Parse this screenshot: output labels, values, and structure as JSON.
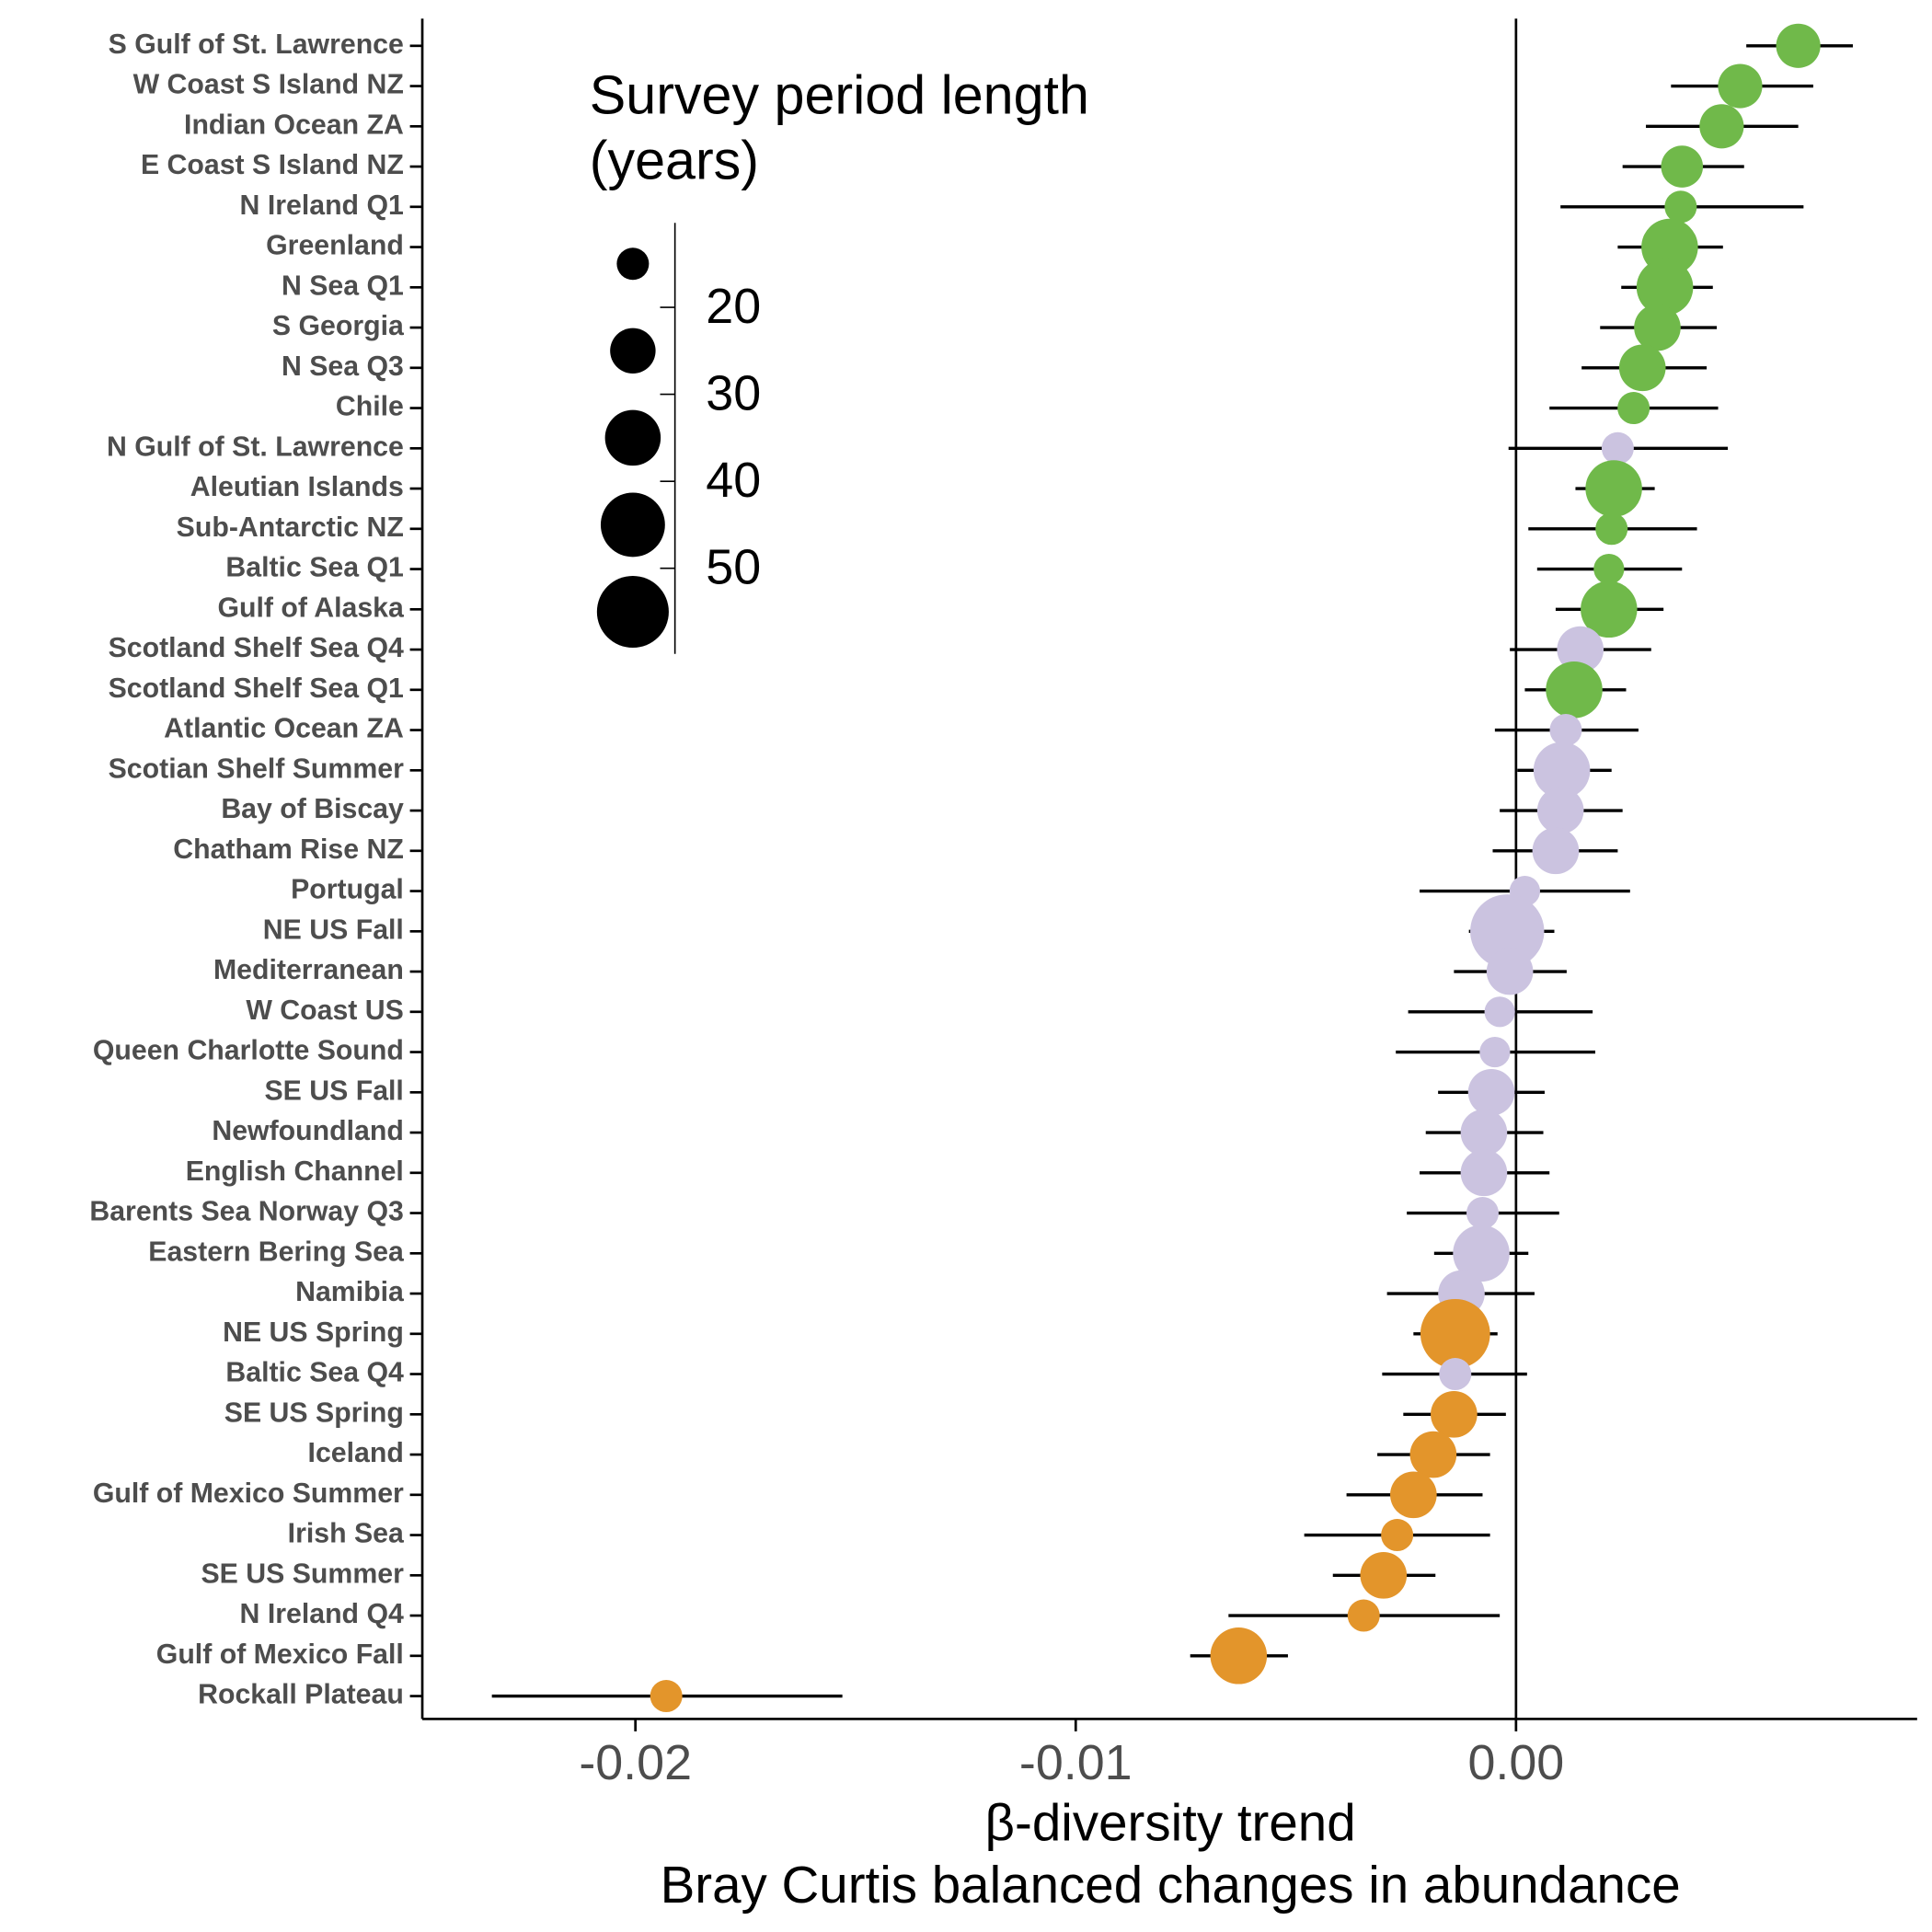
{
  "chart_data": {
    "type": "dotplot",
    "categories": [
      "S Gulf of St. Lawrence",
      "W Coast S Island NZ",
      "Indian Ocean ZA",
      "E Coast S Island NZ",
      "N Ireland Q1",
      "Greenland",
      "N Sea Q1",
      "S Georgia",
      "N Sea Q3",
      "Chile",
      "N Gulf of St. Lawrence",
      "Aleutian Islands",
      "Sub-Antarctic NZ",
      "Baltic Sea Q1",
      "Gulf of Alaska",
      "Scotland Shelf Sea Q4",
      "Scotland Shelf Sea Q1",
      "Atlantic Ocean ZA",
      "Scotian Shelf Summer",
      "Bay of Biscay",
      "Chatham Rise NZ",
      "Portugal",
      "NE US Fall",
      "Mediterranean",
      "W Coast US",
      "Queen Charlotte Sound",
      "SE US Fall",
      "Newfoundland",
      "English Channel",
      "Barents Sea Norway Q3",
      "Eastern Bering Sea",
      "Namibia",
      "NE US Spring",
      "Baltic Sea Q4",
      "SE US Spring",
      "Iceland",
      "Gulf of Mexico Summer",
      "Irish Sea",
      "SE US Summer",
      "N Ireland Q4",
      "Gulf of Mexico Fall",
      "Rockall Plateau"
    ],
    "values": [
      0.00641,
      0.00509,
      0.00467,
      0.00377,
      0.00374,
      0.00349,
      0.00338,
      0.00321,
      0.00287,
      0.00267,
      0.00231,
      0.00222,
      0.00217,
      0.00211,
      0.00211,
      0.00146,
      0.00132,
      0.00113,
      0.00104,
      0.00101,
      0.0009,
      0.0002,
      -0.0002,
      -0.00014,
      -0.00037,
      -0.00048,
      -0.00056,
      -0.00073,
      -0.00073,
      -0.00076,
      -0.00079,
      -0.00124,
      -0.00138,
      -0.00138,
      -0.00141,
      -0.00188,
      -0.00233,
      -0.0027,
      -0.00301,
      -0.00346,
      -0.0063,
      -0.0193
    ],
    "lower": [
      0.00523,
      0.00352,
      0.00295,
      0.00242,
      0.00101,
      0.00231,
      0.00239,
      0.00191,
      0.00149,
      0.00076,
      -0.00017,
      0.00135,
      0.00028,
      0.00048,
      0.0009,
      -0.00014,
      0.0002,
      -0.00048,
      3e-05,
      -0.00037,
      -0.00053,
      -0.00219,
      -0.00107,
      -0.00141,
      -0.00245,
      -0.00273,
      -0.00177,
      -0.00205,
      -0.00219,
      -0.00248,
      -0.00186,
      -0.00293,
      -0.00233,
      -0.00304,
      -0.00256,
      -0.00315,
      -0.00385,
      -0.00481,
      -0.00416,
      -0.00653,
      -0.0074,
      -0.02326
    ],
    "upper": [
      0.00765,
      0.00675,
      0.00641,
      0.00518,
      0.00653,
      0.0047,
      0.00447,
      0.00456,
      0.00433,
      0.00459,
      0.00481,
      0.00315,
      0.00411,
      0.00377,
      0.00335,
      0.00307,
      0.0025,
      0.00278,
      0.00217,
      0.00242,
      0.00231,
      0.00259,
      0.00087,
      0.00115,
      0.00174,
      0.0018,
      0.00065,
      0.00062,
      0.00076,
      0.00098,
      0.00028,
      0.00042,
      -0.00042,
      0.00025,
      -0.00023,
      -0.00059,
      -0.00076,
      -0.00059,
      -0.00183,
      -0.00037,
      -0.00518,
      -0.0153
    ],
    "sizes": [
      24,
      24,
      24,
      22,
      15,
      36,
      36,
      26,
      26,
      15,
      15,
      36,
      15,
      14,
      36,
      26,
      36,
      15,
      36,
      26,
      26,
      14,
      58,
      26,
      14,
      14,
      26,
      26,
      26,
      15,
      36,
      26,
      52,
      15,
      26,
      26,
      26,
      15,
      26,
      15,
      36,
      15
    ],
    "colors": [
      "#70b94a",
      "#70b94a",
      "#70b94a",
      "#70b94a",
      "#70b94a",
      "#70b94a",
      "#70b94a",
      "#70b94a",
      "#70b94a",
      "#70b94a",
      "#cbc3e0",
      "#70b94a",
      "#70b94a",
      "#70b94a",
      "#70b94a",
      "#cbc3e0",
      "#70b94a",
      "#cbc3e0",
      "#cbc3e0",
      "#cbc3e0",
      "#cbc3e0",
      "#cbc3e0",
      "#cbc3e0",
      "#cbc3e0",
      "#cbc3e0",
      "#cbc3e0",
      "#cbc3e0",
      "#cbc3e0",
      "#cbc3e0",
      "#cbc3e0",
      "#cbc3e0",
      "#cbc3e0",
      "#e3952b",
      "#cbc3e0",
      "#e3952b",
      "#e3952b",
      "#e3952b",
      "#e3952b",
      "#e3952b",
      "#e3952b",
      "#e3952b",
      "#e3952b"
    ],
    "xlim": [
      -0.02484,
      0.00911
    ],
    "xticks": [
      {
        "value": -0.02,
        "label": "-0.02"
      },
      {
        "value": -0.01,
        "label": "-0.01"
      },
      {
        "value": 0,
        "label": "0.00"
      }
    ],
    "vline": 0,
    "xlabel": [
      "β-diversity trend",
      "Bray Curtis balanced changes in abundance"
    ],
    "size_legend": {
      "title": [
        "Survey period length",
        "(years)"
      ],
      "ticks": [
        20,
        30,
        40,
        50
      ],
      "values": [
        15,
        25,
        35,
        45,
        55
      ]
    }
  }
}
